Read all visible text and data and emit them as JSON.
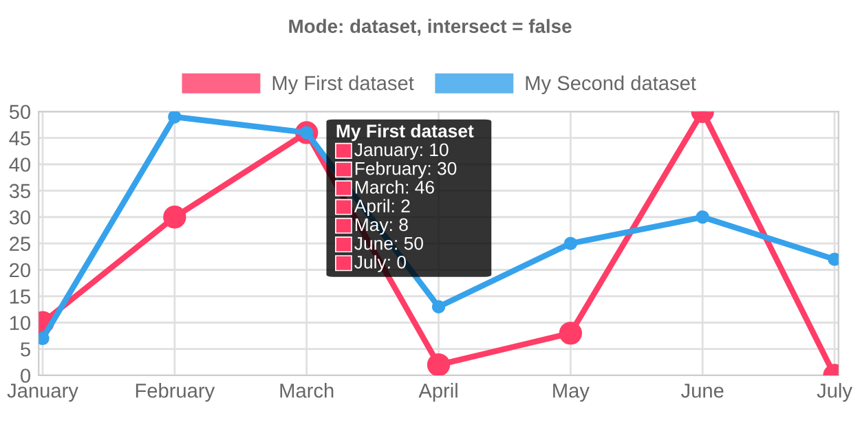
{
  "chart_data": {
    "type": "line",
    "title": "Mode: dataset, intersect = false",
    "categories": [
      "January",
      "February",
      "March",
      "April",
      "May",
      "June",
      "July"
    ],
    "series": [
      {
        "name": "My First dataset",
        "color": "#ff3d67",
        "values": [
          10,
          30,
          46,
          2,
          8,
          50,
          0
        ]
      },
      {
        "name": "My Second dataset",
        "color": "#36a2eb",
        "values": [
          7,
          49,
          46,
          13,
          25,
          30,
          22
        ]
      }
    ],
    "ylim": [
      0,
      50
    ],
    "yticks": [
      0,
      5,
      10,
      15,
      20,
      25,
      30,
      35,
      40,
      45,
      50
    ],
    "grid": true,
    "legend": "top",
    "marker": "circle",
    "line_style": "solid",
    "annotations": [
      "My First dataset",
      "January: 10",
      "February: 30",
      "March: 46",
      "April: 2",
      "May: 8",
      "June: 50",
      "July: 0"
    ]
  }
}
